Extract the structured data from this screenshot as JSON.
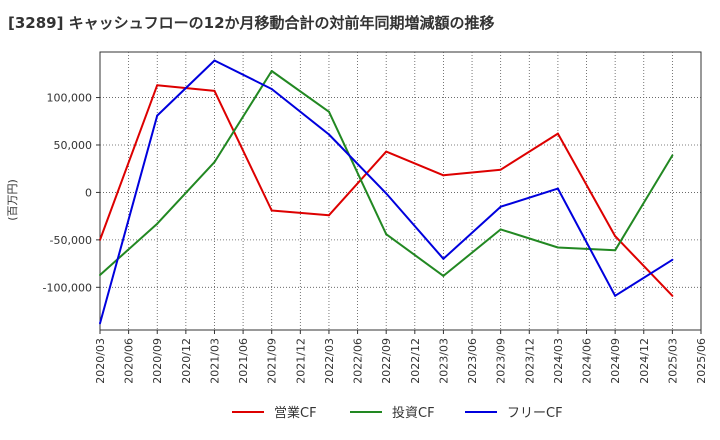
{
  "chart_data": {
    "type": "line",
    "title": "[3289]  キャッシュフローの12か月移動合計の対前年同期増減額の推移",
    "ylabel": "(百万円)",
    "xlabel": "",
    "ylim": [
      -145000,
      148000
    ],
    "yticks": [
      -100000,
      -50000,
      0,
      50000,
      100000
    ],
    "ytick_labels": [
      "-100,000",
      "-50,000",
      "0",
      "50,000",
      "100,000"
    ],
    "categories": [
      "2020/03",
      "2020/06",
      "2020/09",
      "2020/12",
      "2021/03",
      "2021/06",
      "2021/09",
      "2021/12",
      "2022/03",
      "2022/06",
      "2022/09",
      "2022/12",
      "2023/03",
      "2023/06",
      "2023/09",
      "2023/12",
      "2024/03",
      "2024/06",
      "2024/09",
      "2024/12",
      "2025/03",
      "2025/06"
    ],
    "series": [
      {
        "name": "営業CF",
        "color": "#dd0000",
        "x": [
          "2020/03",
          "2020/09",
          "2021/03",
          "2021/09",
          "2022/03",
          "2022/09",
          "2023/03",
          "2023/09",
          "2024/03",
          "2024/09",
          "2025/03"
        ],
        "values": [
          -50000,
          113000,
          107000,
          -19000,
          -24000,
          43000,
          18000,
          24000,
          62000,
          -46000,
          -109000
        ]
      },
      {
        "name": "投資CF",
        "color": "#228822",
        "x": [
          "2020/03",
          "2020/09",
          "2021/03",
          "2021/09",
          "2022/03",
          "2022/09",
          "2023/03",
          "2023/09",
          "2024/03",
          "2024/09",
          "2025/03"
        ],
        "values": [
          -87000,
          -33000,
          32000,
          128000,
          85000,
          -44000,
          -88000,
          -39000,
          -58000,
          -61000,
          39000
        ]
      },
      {
        "name": "フリーCF",
        "color": "#0000dd",
        "x": [
          "2020/03",
          "2020/09",
          "2021/03",
          "2021/09",
          "2022/03",
          "2022/09",
          "2023/03",
          "2023/09",
          "2024/03",
          "2024/09",
          "2025/03"
        ],
        "values": [
          -138000,
          81000,
          139000,
          109000,
          61000,
          -1000,
          -70000,
          -15000,
          4000,
          -109000,
          -71000
        ]
      }
    ]
  }
}
